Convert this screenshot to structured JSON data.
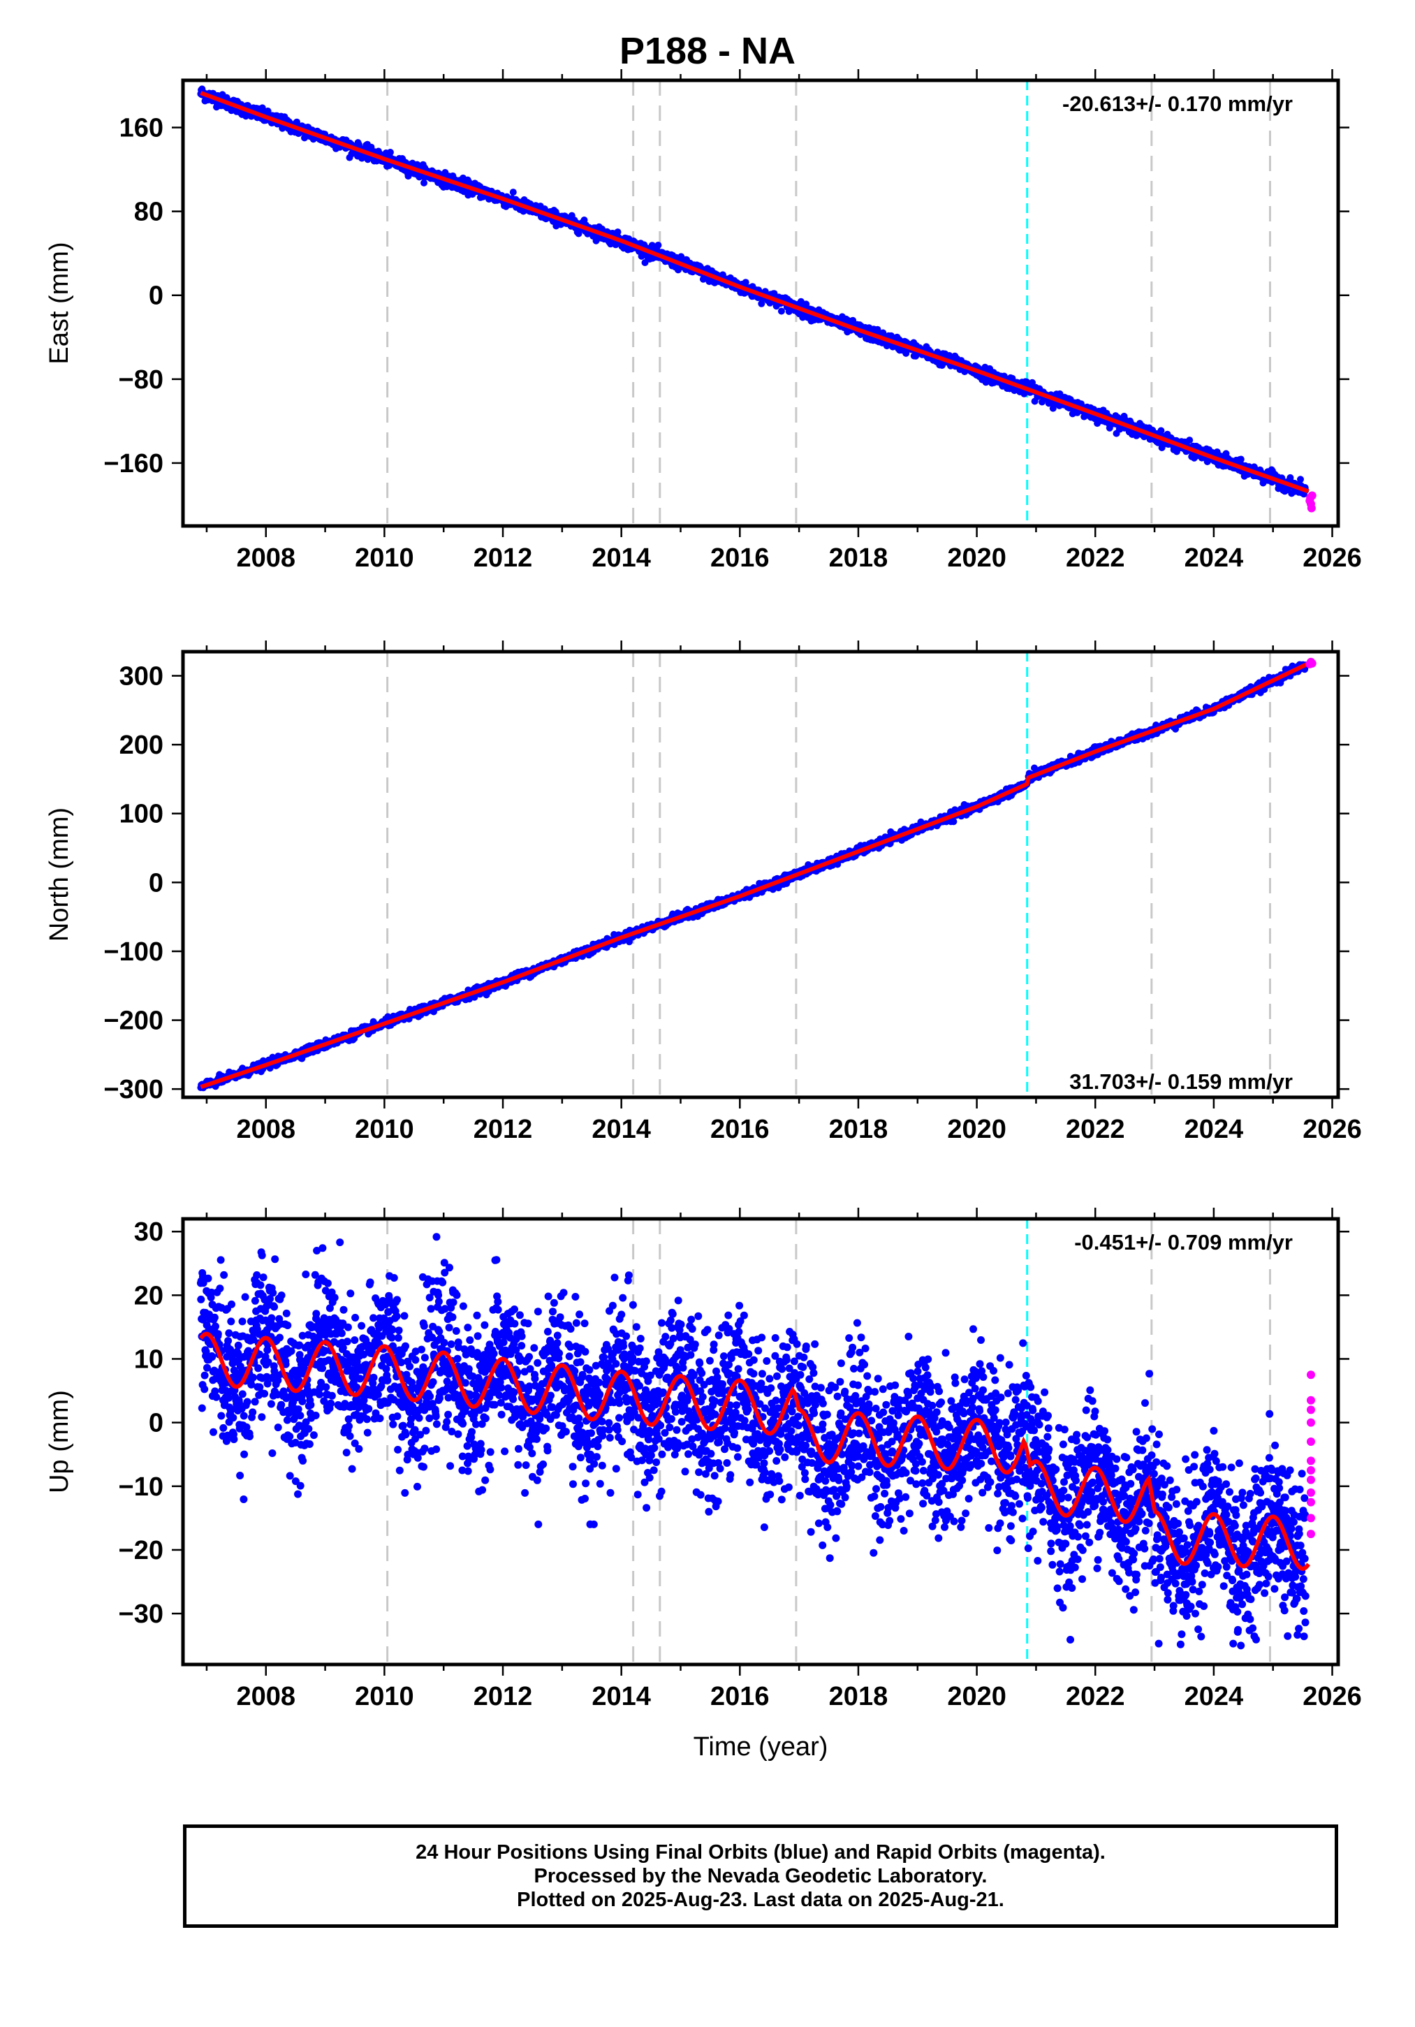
{
  "title": "P188 - NA",
  "colors": {
    "final_orbits": "#0000ff",
    "rapid_orbits": "#ff00ff",
    "model_fit": "#ff0000",
    "equipment_change": "#c8c8c8",
    "event_line": "#00ffff"
  },
  "chart_data": [
    {
      "type": "scatter",
      "component": "east",
      "ylabel": "East (mm)",
      "ylim": [
        -220,
        205
      ],
      "xlim": [
        2006.6,
        2026.1
      ],
      "yticks": [
        -160,
        -80,
        0,
        80,
        160
      ],
      "ytick_labels": [
        "−160",
        "−80",
        "0",
        "80",
        "160"
      ],
      "xticks": [
        2008,
        2010,
        2012,
        2014,
        2016,
        2018,
        2020,
        2022,
        2024,
        2026
      ],
      "xtick_labels": [
        "2008",
        "2010",
        "2012",
        "2014",
        "2016",
        "2018",
        "2020",
        "2022",
        "2024",
        "2026"
      ],
      "rate_text": "-20.613+/- 0.170 mm/yr",
      "rate_position": "top-right",
      "grid": false,
      "data_span": [
        2006.9,
        2025.55
      ],
      "series": [
        {
          "role": "model",
          "x": [
            2006.9,
            2008.0,
            2010.0,
            2012.0,
            2014.0,
            2016.0,
            2018.0,
            2020.0,
            2022.0,
            2024.0,
            2025.6
          ],
          "y": [
            193,
            170,
            130,
            92,
            52,
            8,
            -33,
            -72,
            -113,
            -155,
            -187
          ]
        },
        {
          "role": "final",
          "scatter_mm": 3
        },
        {
          "role": "rapid",
          "x": [
            2025.62,
            2025.63,
            2025.64,
            2025.65,
            2025.66
          ],
          "y": [
            -196,
            -193,
            -199,
            -203,
            -191
          ]
        }
      ]
    },
    {
      "type": "scatter",
      "component": "north",
      "ylabel": "North (mm)",
      "ylim": [
        -312,
        335
      ],
      "xlim": [
        2006.6,
        2026.1
      ],
      "yticks": [
        -300,
        -200,
        -100,
        0,
        100,
        200,
        300
      ],
      "ytick_labels": [
        "−300",
        "−200",
        "−100",
        "0",
        "100",
        "200",
        "300"
      ],
      "xticks": [
        2008,
        2010,
        2012,
        2014,
        2016,
        2018,
        2020,
        2022,
        2024,
        2026
      ],
      "xtick_labels": [
        "2008",
        "2010",
        "2012",
        "2014",
        "2016",
        "2018",
        "2020",
        "2022",
        "2024",
        "2026"
      ],
      "rate_text": "31.703+/- 0.159 mm/yr",
      "rate_position": "bottom-right",
      "grid": false,
      "data_span": [
        2006.9,
        2025.55
      ],
      "series": [
        {
          "role": "model",
          "x": [
            2006.9,
            2008.0,
            2010.0,
            2012.0,
            2014.0,
            2016.0,
            2018.0,
            2020.0,
            2020.85,
            2020.87,
            2022.0,
            2024.0,
            2025.6
          ],
          "y": [
            -297,
            -265,
            -205,
            -145,
            -80,
            -20,
            45,
            110,
            143,
            152,
            190,
            252,
            318
          ]
        },
        {
          "role": "final",
          "scatter_mm": 3
        },
        {
          "role": "rapid",
          "x": [
            2025.62,
            2025.64,
            2025.66
          ],
          "y": [
            317,
            320,
            318
          ]
        }
      ]
    },
    {
      "type": "scatter",
      "component": "up",
      "ylabel": "Up (mm)",
      "xlabel": "Time (year)",
      "ylim": [
        -38,
        32
      ],
      "xlim": [
        2006.6,
        2026.1
      ],
      "yticks": [
        -30,
        -20,
        -10,
        0,
        10,
        20,
        30
      ],
      "ytick_labels": [
        "−30",
        "−20",
        "−10",
        "0",
        "10",
        "20",
        "30"
      ],
      "xticks": [
        2008,
        2010,
        2012,
        2014,
        2016,
        2018,
        2020,
        2022,
        2024,
        2026
      ],
      "xtick_labels": [
        "2008",
        "2010",
        "2012",
        "2014",
        "2016",
        "2018",
        "2020",
        "2022",
        "2024",
        "2026"
      ],
      "rate_text": "-0.451+/- 0.709 mm/yr",
      "rate_position": "top-right",
      "grid": false,
      "data_span": [
        2006.9,
        2025.55
      ],
      "series": [
        {
          "role": "model",
          "annual_amplitude_mm": 4,
          "offsets": [
            {
              "at": 2020.85,
              "step": -6
            },
            {
              "at": 2022.95,
              "step": -8
            }
          ],
          "x": [
            2006.9,
            2010.0,
            2014.0,
            2016.9,
            2017.0,
            2020.8,
            2020.9,
            2022.9,
            2023.0,
            2025.6
          ],
          "y": [
            10,
            8,
            4,
            2,
            -2,
            -4,
            -10,
            -12,
            -18,
            -19
          ]
        },
        {
          "role": "final",
          "scatter_mm": 6
        },
        {
          "role": "rapid",
          "x": [
            2025.64,
            2025.64,
            2025.64,
            2025.64,
            2025.64,
            2025.64,
            2025.64,
            2025.64,
            2025.64,
            2025.64,
            2025.64,
            2025.64
          ],
          "y": [
            7.5,
            3.5,
            2,
            0,
            -3,
            -6,
            -7.5,
            -9,
            -11,
            -12.5,
            -15,
            -17.5
          ]
        }
      ]
    }
  ],
  "equipment_changes": [
    2010.05,
    2014.2,
    2014.65,
    2016.95,
    2022.95,
    2024.95
  ],
  "event_lines": [
    2020.85
  ],
  "footer": {
    "line1": "24 Hour Positions Using Final Orbits (blue) and Rapid Orbits (magenta).",
    "line2": "Processed by the Nevada Geodetic Laboratory.",
    "line3": "Plotted on 2025-Aug-23. Last data on 2025-Aug-21."
  }
}
